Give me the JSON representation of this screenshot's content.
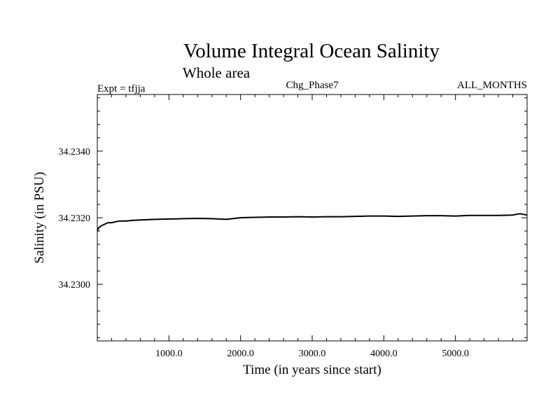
{
  "chart_data": {
    "type": "line",
    "title": "Volume Integral Ocean Salinity",
    "subtitle": "Whole area",
    "header_left": "Expt = tfjja",
    "header_center": "Chg_Phase7",
    "header_right": "ALL_MONTHS",
    "xlabel": "Time (in years since start)",
    "ylabel": "Salinity (in PSU)",
    "xlim": [
      0,
      6000
    ],
    "ylim": [
      34.2283,
      34.2357
    ],
    "x_ticks_labeled": [
      {
        "value": 1000,
        "label": "1000.0"
      },
      {
        "value": 2000,
        "label": "2000.0"
      },
      {
        "value": 3000,
        "label": "3000.0"
      },
      {
        "value": 4000,
        "label": "4000.0"
      },
      {
        "value": 5000,
        "label": "5000.0"
      }
    ],
    "y_ticks_labeled": [
      {
        "value": 34.23,
        "label": "34.2300"
      },
      {
        "value": 34.232,
        "label": "34.2320"
      },
      {
        "value": 34.234,
        "label": "34.2340"
      }
    ],
    "x_minor_step": 200,
    "y_minor_step": 0.0004,
    "grid": false,
    "series": [
      {
        "color": "#000000",
        "x": [
          0,
          20,
          50,
          100,
          150,
          200,
          300,
          400,
          500,
          600,
          800,
          1000,
          1200,
          1400,
          1600,
          1800,
          2000,
          2200,
          2400,
          2600,
          2800,
          3000,
          3200,
          3400,
          3600,
          3800,
          4000,
          4200,
          4400,
          4600,
          4800,
          5000,
          5200,
          5400,
          5600,
          5800,
          5900,
          6000
        ],
        "y": [
          34.2316,
          34.2317,
          34.23175,
          34.2318,
          34.23185,
          34.23185,
          34.2319,
          34.2319,
          34.23192,
          34.23193,
          34.23195,
          34.23196,
          34.23197,
          34.23198,
          34.23197,
          34.23195,
          34.232,
          34.23201,
          34.23202,
          34.23202,
          34.23203,
          34.23202,
          34.23203,
          34.23203,
          34.23204,
          34.23205,
          34.23205,
          34.23204,
          34.23205,
          34.23206,
          34.23206,
          34.23205,
          34.23207,
          34.23207,
          34.23207,
          34.23208,
          34.23212,
          34.23208
        ]
      }
    ]
  }
}
